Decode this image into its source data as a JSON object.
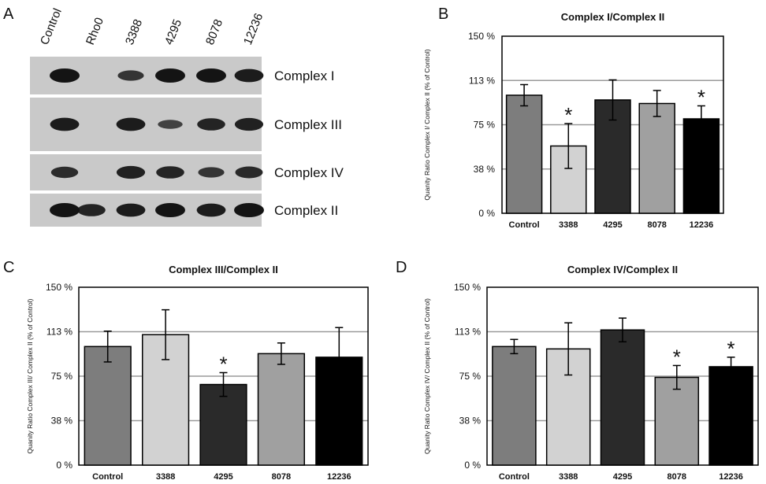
{
  "panel_letters": {
    "a": "A",
    "b": "B",
    "c": "C",
    "d": "D"
  },
  "blot": {
    "lanes": [
      "Control",
      "Rho0",
      "3388",
      "4295",
      "8078",
      "12236"
    ],
    "rows": [
      {
        "label": "Complex I",
        "bands": [
          1.0,
          0.0,
          0.6,
          1.0,
          1.0,
          0.9
        ]
      },
      {
        "label": "Complex III",
        "bands": [
          0.9,
          0.0,
          0.9,
          0.45,
          0.8,
          0.85
        ]
      },
      {
        "label": "Complex IV",
        "bands": [
          0.7,
          0.0,
          0.85,
          0.8,
          0.6,
          0.75
        ]
      },
      {
        "label": "Complex II",
        "bands": [
          1.0,
          0.8,
          0.9,
          1.0,
          0.9,
          1.0
        ]
      }
    ],
    "colors": {
      "background": "#c9c9c9",
      "band": "#141414"
    }
  },
  "chart_data": [
    {
      "type": "bar",
      "title": "Complex I/Complex II",
      "ylabel": "Quanity Ratio Complex I/ Complex II (% of Control)",
      "categories": [
        "Control",
        "3388",
        "4295",
        "8078",
        "12236"
      ],
      "values": [
        100,
        57,
        96,
        93,
        80
      ],
      "errors": [
        9,
        19,
        17,
        11,
        11
      ],
      "significant": [
        false,
        true,
        false,
        false,
        true
      ],
      "marker": "*",
      "ylim": [
        0,
        150
      ],
      "yticks": [
        "0 %",
        "38 %",
        "75 %",
        "113 %",
        "150 %"
      ],
      "colors": [
        "#7d7d7d",
        "#d2d2d2",
        "#2a2a2a",
        "#a0a0a0",
        "#000000"
      ],
      "grid": true
    },
    {
      "type": "bar",
      "title": "Complex III/Complex II",
      "ylabel": "Quanity Ratio Complex III/ Complex II (% of Control)",
      "categories": [
        "Control",
        "3388",
        "4295",
        "8078",
        "12236"
      ],
      "values": [
        100,
        110,
        68,
        94,
        91
      ],
      "errors": [
        13,
        21,
        10,
        9,
        25
      ],
      "significant": [
        false,
        false,
        true,
        false,
        false
      ],
      "marker": "*",
      "ylim": [
        0,
        150
      ],
      "yticks": [
        "0 %",
        "38 %",
        "75 %",
        "113 %",
        "150 %"
      ],
      "colors": [
        "#7d7d7d",
        "#d2d2d2",
        "#2a2a2a",
        "#a0a0a0",
        "#000000"
      ],
      "grid": true
    },
    {
      "type": "bar",
      "title": "Complex IV/Complex II",
      "ylabel": "Quanity Ratio Complex IV/ Complex II (% of Control)",
      "categories": [
        "Control",
        "3388",
        "4295",
        "8078",
        "12236"
      ],
      "values": [
        100,
        98,
        114,
        74,
        83
      ],
      "errors": [
        6,
        22,
        10,
        10,
        8
      ],
      "significant": [
        false,
        false,
        false,
        true,
        true
      ],
      "marker": "*",
      "ylim": [
        0,
        150
      ],
      "yticks": [
        "0 %",
        "38 %",
        "75 %",
        "113 %",
        "150 %"
      ],
      "colors": [
        "#7d7d7d",
        "#d2d2d2",
        "#2a2a2a",
        "#a0a0a0",
        "#000000"
      ],
      "grid": true
    }
  ]
}
